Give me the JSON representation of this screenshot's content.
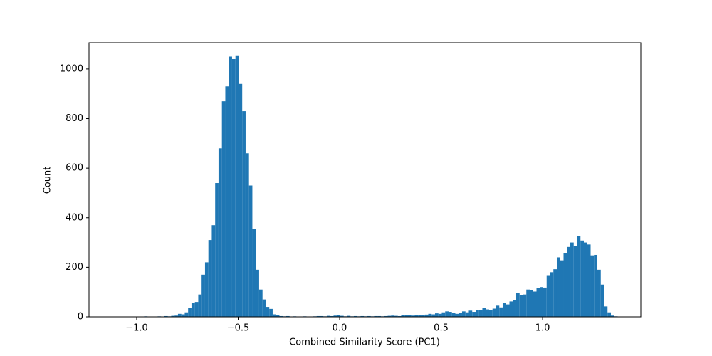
{
  "chart_data": {
    "type": "histogram",
    "xlabel": "Combined Similarity Score (PC1)",
    "ylabel": "Count",
    "color": "#1f77b4",
    "bins": [
      -1.13,
      -1.1133,
      -1.0967,
      -1.08,
      -1.0633,
      -1.0467,
      -1.03,
      -1.0133,
      -0.9967,
      -0.98,
      -0.9633,
      -0.9467,
      -0.93,
      -0.9133,
      -0.8967,
      -0.88,
      -0.8633,
      -0.8467,
      -0.83,
      -0.8133,
      -0.7967,
      -0.78,
      -0.7633,
      -0.7467,
      -0.73,
      -0.7133,
      -0.6967,
      -0.68,
      -0.6633,
      -0.6467,
      -0.63,
      -0.6133,
      -0.5967,
      -0.58,
      -0.5633,
      -0.5467,
      -0.53,
      -0.5133,
      -0.4967,
      -0.48,
      -0.4633,
      -0.4467,
      -0.43,
      -0.4133,
      -0.3967,
      -0.38,
      -0.3633,
      -0.3467,
      -0.33,
      -0.3133,
      -0.2967,
      -0.28,
      -0.2633,
      -0.2467,
      -0.23,
      -0.2133,
      -0.1967,
      -0.18,
      -0.1633,
      -0.1467,
      -0.13,
      -0.1133,
      -0.0967,
      -0.08,
      -0.0633,
      -0.0467,
      -0.03,
      -0.0133,
      0.0033,
      0.02,
      0.0367,
      0.0533,
      0.07,
      0.0867,
      0.1033,
      0.12,
      0.1367,
      0.1533,
      0.17,
      0.1867,
      0.2033,
      0.22,
      0.2367,
      0.2533,
      0.27,
      0.2867,
      0.3033,
      0.32,
      0.3367,
      0.3533,
      0.37,
      0.3867,
      0.4033,
      0.42,
      0.4367,
      0.4533,
      0.47,
      0.4867,
      0.5033,
      0.52,
      0.5367,
      0.5533,
      0.57,
      0.5867,
      0.6033,
      0.62,
      0.6367,
      0.6533,
      0.67,
      0.6867,
      0.7033,
      0.72,
      0.7367,
      0.7533,
      0.77,
      0.7867,
      0.8033,
      0.82,
      0.8367,
      0.8533,
      0.87,
      0.8867,
      0.9033,
      0.92,
      0.9367,
      0.9533,
      0.97,
      0.9867,
      1.0033,
      1.02,
      1.0367,
      1.0533,
      1.07,
      1.0867,
      1.1033,
      1.12,
      1.1367,
      1.1533,
      1.17,
      1.1867,
      1.2033,
      1.22,
      1.2367,
      1.2533,
      1.27,
      1.2867,
      1.3033,
      1.32,
      1.3367,
      1.3533,
      1.37
    ],
    "values": [
      0,
      0,
      0,
      1,
      0,
      0,
      0,
      0,
      1,
      0,
      2,
      1,
      0,
      1,
      2,
      1,
      3,
      2,
      4,
      5,
      12,
      10,
      18,
      35,
      55,
      60,
      90,
      170,
      220,
      310,
      370,
      540,
      680,
      870,
      930,
      1050,
      1040,
      1055,
      940,
      830,
      660,
      530,
      355,
      190,
      110,
      70,
      40,
      32,
      10,
      6,
      3,
      2,
      3,
      1,
      2,
      1,
      0,
      2,
      1,
      1,
      2,
      3,
      3,
      2,
      4,
      3,
      5,
      6,
      4,
      2,
      4,
      2,
      3,
      2,
      3,
      2,
      3,
      2,
      3,
      3,
      2,
      3,
      4,
      5,
      4,
      3,
      6,
      8,
      7,
      5,
      7,
      8,
      6,
      9,
      12,
      10,
      14,
      12,
      18,
      22,
      20,
      16,
      12,
      15,
      22,
      18,
      25,
      20,
      28,
      26,
      36,
      30,
      28,
      33,
      45,
      38,
      55,
      50,
      62,
      68,
      95,
      88,
      90,
      110,
      108,
      102,
      115,
      120,
      118,
      168,
      180,
      192,
      240,
      228,
      258,
      282,
      300,
      285,
      325,
      308,
      300,
      292,
      248,
      250,
      190,
      130,
      42,
      18,
      5,
      2
    ],
    "xlim": [
      -1.235,
      1.484
    ],
    "ylim": [
      0,
      1106
    ],
    "xticks": [
      {
        "value": -1.0,
        "label": "−1.0"
      },
      {
        "value": -0.5,
        "label": "−0.5"
      },
      {
        "value": 0.0,
        "label": "0.0"
      },
      {
        "value": 0.5,
        "label": "0.5"
      },
      {
        "value": 1.0,
        "label": "1.0"
      }
    ],
    "yticks": [
      0,
      200,
      400,
      600,
      800,
      1000
    ]
  }
}
